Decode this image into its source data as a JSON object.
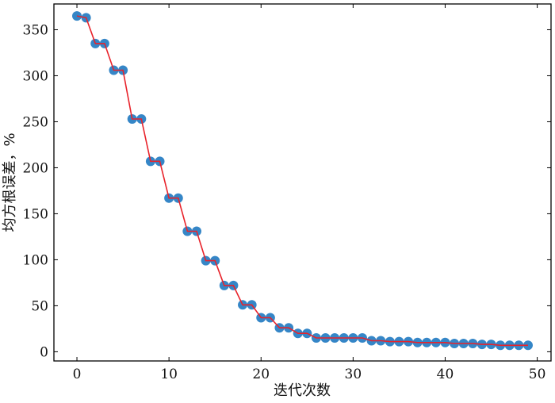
{
  "chart_data": {
    "type": "line",
    "xlabel": "迭代次数",
    "ylabel": "均方根误差，%",
    "xlim": [
      -2.5,
      51.5
    ],
    "ylim": [
      -10,
      378
    ],
    "xticks": [
      0,
      10,
      20,
      30,
      40,
      50
    ],
    "yticks": [
      0,
      50,
      100,
      150,
      200,
      250,
      300,
      350
    ],
    "grid": false,
    "line_color": "#e8222a",
    "marker_color": "#2a7fc4",
    "series": [
      {
        "x": [
          0,
          1,
          2,
          3,
          4,
          5,
          6,
          7,
          8,
          9,
          10,
          11,
          12,
          13,
          14,
          15,
          16,
          17,
          18,
          19,
          20,
          21,
          22,
          23,
          24,
          25,
          26,
          27,
          28,
          29,
          30,
          31,
          32,
          33,
          34,
          35,
          36,
          37,
          38,
          39,
          40,
          41,
          42,
          43,
          44,
          45,
          46,
          47,
          48,
          49
        ],
        "y": [
          365,
          363,
          335,
          335,
          306,
          306,
          253,
          253,
          207,
          207,
          167,
          167,
          131,
          131,
          99,
          99,
          72,
          72,
          51,
          51,
          37,
          37,
          26,
          26,
          20,
          20,
          15,
          15,
          15,
          15,
          15,
          15,
          12,
          12,
          11,
          11,
          11,
          10,
          10,
          10,
          10,
          9,
          9,
          9,
          8,
          8,
          7,
          7,
          7,
          7
        ]
      }
    ]
  }
}
